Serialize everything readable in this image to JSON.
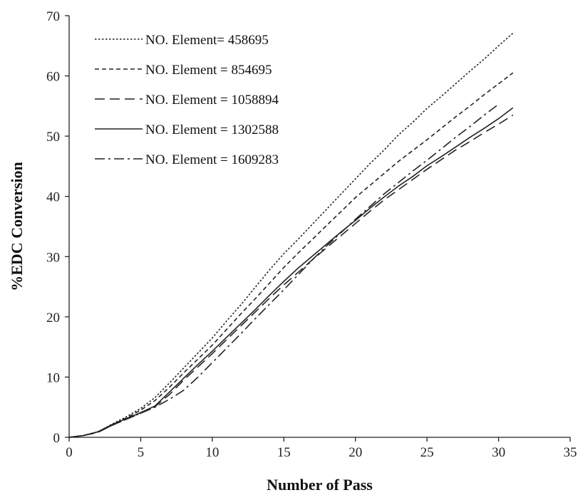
{
  "chart_data": {
    "type": "line",
    "title": "",
    "xlabel": "Number of Pass",
    "ylabel": "%EDC Conversion",
    "xlim": [
      0,
      35
    ],
    "ylim": [
      0,
      70
    ],
    "xticks": [
      0,
      5,
      10,
      15,
      20,
      25,
      30,
      35
    ],
    "yticks": [
      0,
      10,
      20,
      30,
      40,
      50,
      60,
      70
    ],
    "grid": false,
    "legend_position": "top-left",
    "series": [
      {
        "name": "NO. Element= 458695",
        "dash": "dotted",
        "x": [
          0,
          1,
          2,
          3,
          4,
          5,
          6,
          7,
          8,
          9,
          10,
          11,
          12,
          13,
          14,
          15,
          16,
          17,
          18,
          19,
          20,
          21,
          22,
          23,
          24,
          25,
          26,
          27,
          28,
          29,
          30,
          31
        ],
        "y": [
          0,
          0.3,
          0.9,
          2.2,
          3.4,
          4.8,
          6.6,
          9.0,
          11.5,
          14.0,
          16.5,
          19.3,
          22.0,
          24.9,
          27.8,
          30.5,
          32.9,
          35.4,
          37.9,
          40.4,
          42.9,
          45.4,
          47.7,
          50.2,
          52.3,
          54.6,
          56.6,
          58.7,
          60.8,
          62.8,
          65.0,
          67.1
        ]
      },
      {
        "name": "NO. Element = 854695",
        "dash": "short-dash",
        "x": [
          0,
          1,
          2,
          3,
          4,
          5,
          6,
          7,
          8,
          9,
          10,
          11,
          12,
          13,
          14,
          15,
          16,
          17,
          18,
          19,
          20,
          21,
          22,
          23,
          24,
          25,
          26,
          27,
          28,
          29,
          30,
          31
        ],
        "y": [
          0,
          0.3,
          0.9,
          2.1,
          3.2,
          4.5,
          6.1,
          8.3,
          10.7,
          13.0,
          15.3,
          17.9,
          20.5,
          23.0,
          25.6,
          28.2,
          30.6,
          32.9,
          35.2,
          37.5,
          39.8,
          41.8,
          43.8,
          45.8,
          47.6,
          49.4,
          51.3,
          53.2,
          55.0,
          56.9,
          58.7,
          60.5
        ]
      },
      {
        "name": "NO. Element = 1058894",
        "dash": "long-dash",
        "x": [
          0,
          1,
          2,
          3,
          4,
          5,
          6,
          7,
          8,
          9,
          10,
          11,
          12,
          13,
          14,
          15,
          16,
          17,
          18,
          19,
          20,
          21,
          22,
          23,
          24,
          25,
          26,
          27,
          28,
          29,
          30,
          31
        ],
        "y": [
          0,
          0.3,
          0.8,
          2.0,
          3.0,
          4.0,
          5.1,
          7.1,
          9.5,
          11.7,
          13.9,
          16.2,
          18.5,
          20.8,
          23.1,
          25.3,
          27.4,
          29.5,
          31.5,
          33.5,
          35.5,
          37.5,
          39.4,
          41.1,
          42.8,
          44.5,
          46.1,
          47.7,
          49.1,
          50.6,
          52.0,
          53.5
        ]
      },
      {
        "name": "NO. Element = 1302588",
        "dash": "solid",
        "x": [
          0,
          1,
          2,
          3,
          4,
          5,
          6,
          7,
          8,
          9,
          10,
          11,
          12,
          13,
          14,
          15,
          16,
          17,
          18,
          19,
          20,
          21,
          22,
          23,
          24,
          25,
          26,
          27,
          28,
          29,
          30,
          31
        ],
        "y": [
          0,
          0.3,
          0.9,
          2.1,
          3.1,
          4.1,
          5.2,
          7.5,
          9.8,
          12.1,
          14.3,
          16.6,
          18.9,
          21.2,
          23.6,
          25.9,
          28.1,
          30.1,
          32.1,
          34.1,
          36.0,
          38.0,
          39.9,
          41.7,
          43.3,
          45.1,
          46.6,
          48.2,
          49.8,
          51.3,
          52.9,
          54.7
        ]
      },
      {
        "name": "NO. Element = 1609283",
        "dash": "dash-dot",
        "x": [
          0,
          1,
          2,
          3,
          4,
          5,
          6,
          7,
          8,
          9,
          10,
          11,
          12,
          13,
          14,
          15,
          16,
          17,
          18,
          19,
          20,
          21,
          22,
          23,
          24,
          25,
          26,
          27,
          28,
          29,
          30
        ],
        "y": [
          0,
          0.3,
          0.9,
          2.0,
          3.0,
          4.0,
          5.0,
          6.3,
          7.8,
          10.0,
          12.4,
          14.8,
          17.2,
          19.7,
          22.1,
          24.5,
          27.0,
          29.5,
          31.8,
          34.0,
          36.2,
          38.3,
          40.4,
          42.3,
          44.2,
          46.0,
          47.9,
          49.8,
          51.6,
          53.5,
          55.3
        ]
      }
    ]
  }
}
